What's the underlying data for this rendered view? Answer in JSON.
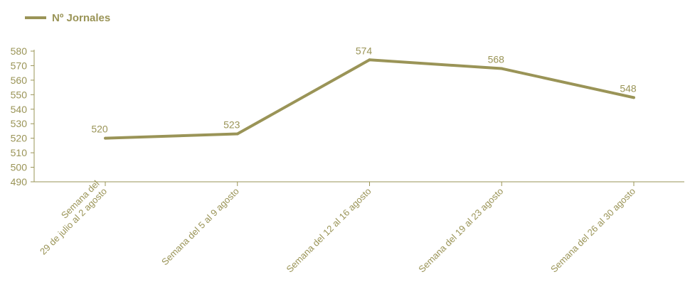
{
  "chart_data": {
    "type": "line",
    "categories": [
      [
        "Semana del",
        "29 de julio al 2 agosto"
      ],
      [
        "Semana del 5 al 9 agosto"
      ],
      [
        "Semana del 12 al 16 agosto"
      ],
      [
        "Semana del 19 al 23 agosto"
      ],
      [
        "Semana del 26 al 30 agosto"
      ]
    ],
    "series": [
      {
        "name": "Nº Jornales",
        "values": [
          520,
          523,
          574,
          568,
          548
        ]
      }
    ],
    "ylim": [
      490,
      580
    ],
    "yticks": [
      490,
      500,
      510,
      520,
      530,
      540,
      550,
      560,
      570,
      580
    ],
    "grid": false,
    "legend": "top-left",
    "data_labels": true,
    "color": "#9a9457"
  }
}
